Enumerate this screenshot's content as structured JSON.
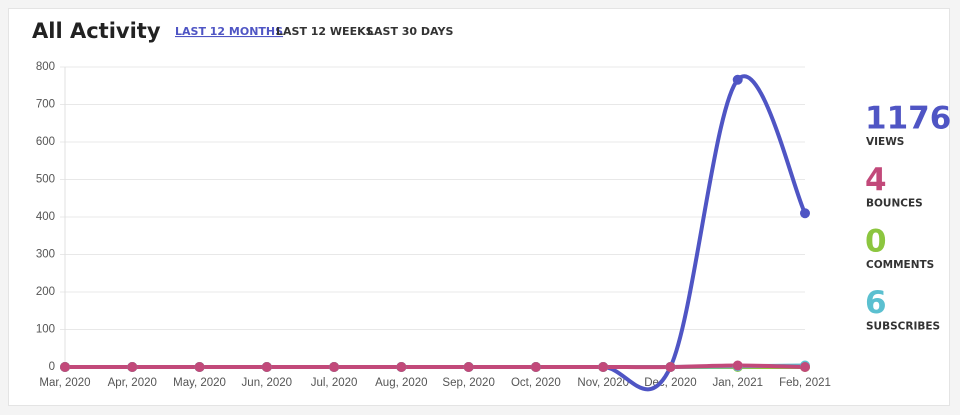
{
  "header": {
    "title": "All Activity",
    "tabs": [
      "LAST 12 MONTHS",
      "LAST 12 WEEKS",
      "LAST 30 DAYS"
    ]
  },
  "chart_data": {
    "type": "line",
    "categories": [
      "Mar, 2020",
      "Apr, 2020",
      "May, 2020",
      "Jun, 2020",
      "Jul, 2020",
      "Aug, 2020",
      "Sep, 2020",
      "Oct, 2020",
      "Nov, 2020",
      "Dec, 2020",
      "Jan, 2021",
      "Feb, 2021"
    ],
    "series": [
      {
        "name": "VIEWS",
        "color": "#4f55c4",
        "values": [
          0,
          0,
          0,
          0,
          0,
          0,
          0,
          0,
          0,
          0,
          766,
          410
        ]
      },
      {
        "name": "COMMENTS",
        "color": "#8cc63f",
        "values": [
          0,
          0,
          0,
          0,
          0,
          0,
          0,
          0,
          0,
          0,
          0,
          0
        ]
      },
      {
        "name": "SUBSCRIBES",
        "color": "#5bc0d0",
        "values": [
          0,
          0,
          0,
          0,
          0,
          0,
          0,
          0,
          0,
          0,
          2,
          4
        ]
      },
      {
        "name": "BOUNCES",
        "color": "#c2497a",
        "values": [
          0,
          0,
          0,
          0,
          0,
          0,
          0,
          0,
          0,
          0,
          4,
          0
        ]
      }
    ],
    "ylim": [
      0,
      800
    ],
    "yticks": [
      0,
      100,
      200,
      300,
      400,
      500,
      600,
      700,
      800
    ],
    "grid": true
  },
  "stats": [
    {
      "value": 1176,
      "label": "VIEWS",
      "color": "#4f55c4"
    },
    {
      "value": 4,
      "label": "BOUNCES",
      "color": "#c2497a"
    },
    {
      "value": 0,
      "label": "COMMENTS",
      "color": "#8cc63f"
    },
    {
      "value": 6,
      "label": "SUBSCRIBES",
      "color": "#5bc0d0"
    }
  ]
}
